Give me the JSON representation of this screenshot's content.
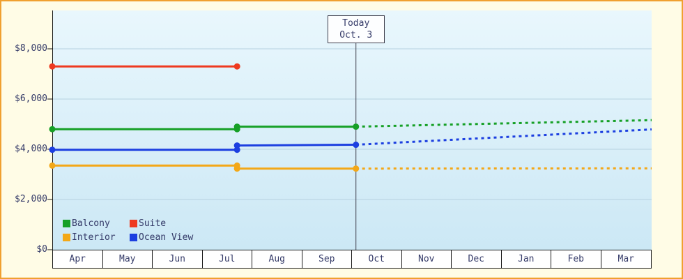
{
  "chart_data": {
    "type": "line",
    "x_axis": {
      "categories": [
        "Apr",
        "May",
        "Jun",
        "Jul",
        "Aug",
        "Sep",
        "Oct",
        "Nov",
        "Dec",
        "Jan",
        "Feb",
        "Mar"
      ]
    },
    "y_axis": {
      "ticks": [
        {
          "value": 0,
          "label": "$0"
        },
        {
          "value": 2000,
          "label": "$2,000"
        },
        {
          "value": 4000,
          "label": "$4,000"
        },
        {
          "value": 6000,
          "label": "$6,000"
        },
        {
          "value": 8000,
          "label": "$8,000"
        }
      ],
      "range": [
        0,
        9528
      ],
      "prefix": "$"
    },
    "today_marker": {
      "label": "Today",
      "date": "Oct. 3",
      "x": 6.08
    },
    "series": [
      {
        "name": "Balcony",
        "color": "#16a026",
        "solid": [
          [
            0,
            4800
          ],
          [
            3.7,
            4800
          ],
          [
            3.7,
            4900
          ],
          [
            6.08,
            4900
          ]
        ],
        "dashed": [
          [
            6.08,
            4900
          ],
          [
            12,
            5160
          ]
        ],
        "dots": [
          [
            0,
            4800
          ],
          [
            3.7,
            4800
          ],
          [
            3.7,
            4900
          ],
          [
            6.08,
            4900
          ]
        ]
      },
      {
        "name": "Suite",
        "color": "#ee3a20",
        "solid": [
          [
            0,
            7300
          ],
          [
            3.7,
            7300
          ]
        ],
        "dashed": [],
        "dots": [
          [
            0,
            7300
          ],
          [
            3.7,
            7300
          ]
        ]
      },
      {
        "name": "Interior",
        "color": "#f3a818",
        "solid": [
          [
            0,
            3350
          ],
          [
            3.7,
            3350
          ],
          [
            3.7,
            3230
          ],
          [
            6.08,
            3230
          ]
        ],
        "dashed": [
          [
            6.08,
            3230
          ],
          [
            12,
            3240
          ]
        ],
        "dots": [
          [
            0,
            3350
          ],
          [
            3.7,
            3350
          ],
          [
            3.7,
            3230
          ],
          [
            6.08,
            3230
          ]
        ]
      },
      {
        "name": "Ocean View",
        "color": "#1c3fe0",
        "solid": [
          [
            0,
            3980
          ],
          [
            3.7,
            3980
          ],
          [
            3.7,
            4150
          ],
          [
            6.08,
            4180
          ]
        ],
        "dashed": [
          [
            6.08,
            4180
          ],
          [
            12,
            4790
          ]
        ],
        "dots": [
          [
            0,
            3980
          ],
          [
            3.7,
            3980
          ],
          [
            3.7,
            4150
          ],
          [
            6.08,
            4180
          ]
        ]
      }
    ],
    "legend": {
      "rows": [
        [
          "Balcony",
          "Suite"
        ],
        [
          "Interior",
          "Ocean View"
        ]
      ]
    },
    "colors": {
      "frame_border": "#f0a030",
      "background": "#fffce6",
      "plot_gradient_top": "#e9f7fd",
      "plot_gradient_bottom": "#cce8f5",
      "text": "#343a68",
      "grid": "#b6d2e0",
      "axis": "#1a1a1a",
      "today_line": "#3c3c4a",
      "month_band_bg": "#ffffff"
    }
  }
}
